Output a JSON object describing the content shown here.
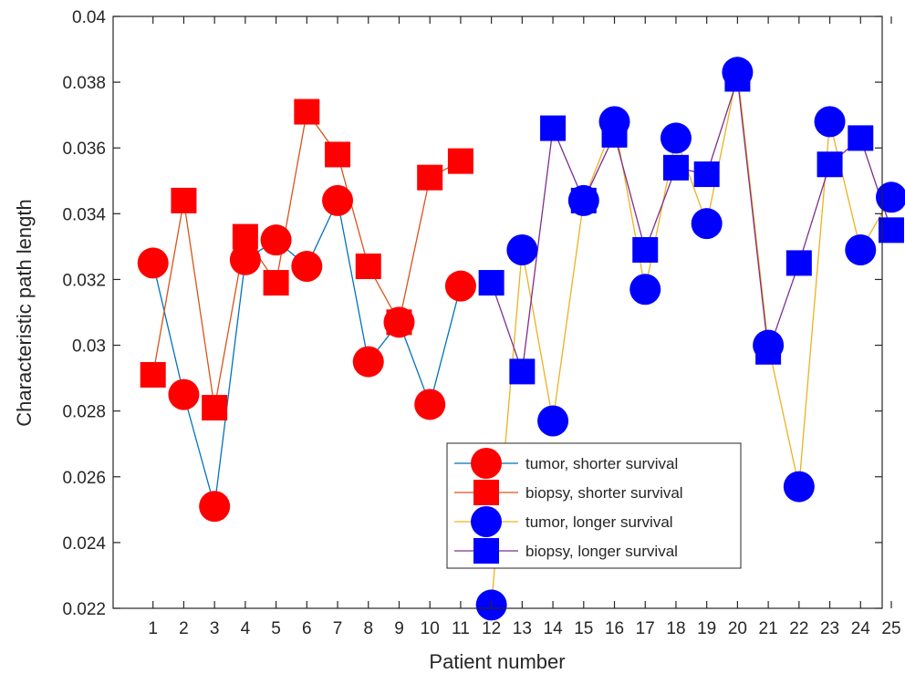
{
  "chart_data": {
    "type": "line",
    "xlabel": "Patient number",
    "ylabel": "Characteristic path length",
    "xlim": [
      0,
      25
    ],
    "ylim": [
      0.022,
      0.04
    ],
    "x_ticks": [
      1,
      2,
      3,
      4,
      5,
      6,
      7,
      8,
      9,
      10,
      11,
      12,
      13,
      14,
      15,
      16,
      17,
      18,
      19,
      20,
      21,
      22,
      23,
      24,
      25
    ],
    "y_ticks": [
      "0.022",
      "0.024",
      "0.026",
      "0.028",
      "0.03",
      "0.032",
      "0.034",
      "0.036",
      "0.038",
      "0.04"
    ],
    "grid": false,
    "legend_position": "bottom-center",
    "series": [
      {
        "name": "tumor, shorter survival",
        "x": [
          1,
          2,
          3,
          4,
          5,
          6,
          7,
          8,
          9,
          10,
          11
        ],
        "values": [
          0.0325,
          0.0285,
          0.0251,
          0.0326,
          0.0332,
          0.0324,
          0.0344,
          0.0295,
          0.0307,
          0.0282,
          0.0318
        ],
        "marker": "circle",
        "marker_color": "#ff0000",
        "line_color": "#0072bd"
      },
      {
        "name": "biopsy, shorter survival",
        "x": [
          1,
          2,
          3,
          4,
          5,
          6,
          7,
          8,
          9,
          10,
          11
        ],
        "values": [
          0.0291,
          0.0344,
          0.0281,
          0.0333,
          0.0319,
          0.0371,
          0.0358,
          0.0324,
          0.0307,
          0.0351,
          0.0356
        ],
        "marker": "square",
        "marker_color": "#ff0000",
        "line_color": "#d95319"
      },
      {
        "name": "tumor, longer survival",
        "x": [
          12,
          13,
          14,
          15,
          16,
          17,
          18,
          19,
          20,
          21,
          22,
          23,
          24,
          25
        ],
        "values": [
          0.0221,
          0.0329,
          0.0277,
          0.0344,
          0.0368,
          0.0317,
          0.0363,
          0.0337,
          0.0383,
          0.03,
          0.0257,
          0.0368,
          0.0329,
          0.0345
        ],
        "marker": "circle",
        "marker_color": "#0000ff",
        "line_color": "#edb120"
      },
      {
        "name": "biopsy, longer survival",
        "x": [
          12,
          13,
          14,
          15,
          16,
          17,
          18,
          19,
          20,
          21,
          22,
          23,
          24,
          25
        ],
        "values": [
          0.0319,
          0.0292,
          0.0366,
          0.0344,
          0.0364,
          0.0329,
          0.0354,
          0.0352,
          0.0381,
          0.0298,
          0.0325,
          0.0355,
          0.0363,
          0.0335
        ],
        "marker": "square",
        "marker_color": "#0000ff",
        "line_color": "#7e2f8e"
      }
    ]
  }
}
